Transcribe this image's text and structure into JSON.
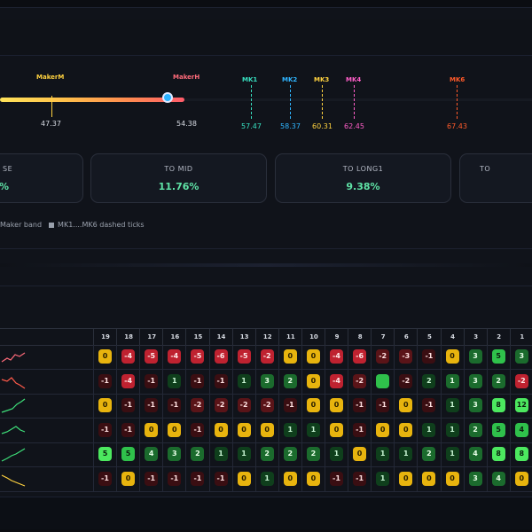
{
  "markers": {
    "maker_m": {
      "label": "MakerM",
      "value": "47.37",
      "color": "#ffd23f"
    },
    "maker_h": {
      "label": "MakerH",
      "value": "54.38",
      "color": "#ff6b7a"
    },
    "mk1": {
      "label": "MK1",
      "value": "57.47",
      "color": "#37e0c0"
    },
    "mk2": {
      "label": "MK2",
      "value": "58.37",
      "color": "#2fb5ff"
    },
    "mk3": {
      "label": "MK3",
      "value": "60.31",
      "color": "#ffd23f"
    },
    "mk4": {
      "label": "MK4",
      "value": "62.45",
      "color": "#ff5ec8"
    },
    "mk6": {
      "label": "MK6",
      "value": "67.43",
      "color": "#ff5a2a"
    }
  },
  "cards": [
    {
      "title": "SE",
      "value": "%"
    },
    {
      "title": "TO MID",
      "value": "11.76%"
    },
    {
      "title": "TO LONG1",
      "value": "9.38%"
    },
    {
      "title": "TO",
      "value": ""
    }
  ],
  "legend": {
    "item1": "Maker band",
    "item2": "MK1....MK6 dashed ticks"
  },
  "table": {
    "headers": [
      "19",
      "18",
      "17",
      "16",
      "15",
      "14",
      "13",
      "12",
      "11",
      "10",
      "9",
      "8",
      "7",
      "6",
      "5",
      "4",
      "3",
      "2",
      "1",
      "0"
    ],
    "rows": [
      {
        "cells": [
          [
            "0",
            "zero"
          ],
          [
            "-4",
            "negd"
          ],
          [
            "-5",
            "negd"
          ],
          [
            "-4",
            "negd"
          ],
          [
            "-5",
            "negd"
          ],
          [
            "-6",
            "negd"
          ],
          [
            "-5",
            "negd"
          ],
          [
            "-2",
            "negd"
          ],
          [
            "0",
            "zero"
          ],
          [
            "0",
            "zero"
          ],
          [
            "-4",
            "negd"
          ],
          [
            "-6",
            "negd"
          ],
          [
            "-2",
            "neg"
          ],
          [
            "-3",
            "neg"
          ],
          [
            "-1",
            "negl"
          ],
          [
            "0",
            "zero"
          ],
          [
            "3",
            "pos"
          ],
          [
            "5",
            "posb"
          ],
          [
            "3",
            "pos"
          ],
          [
            "2",
            "posb"
          ]
        ]
      },
      {
        "cells": [
          [
            "-1",
            "negl"
          ],
          [
            "-4",
            "negd"
          ],
          [
            "-1",
            "negl"
          ],
          [
            "1",
            "posd"
          ],
          [
            "-1",
            "negl"
          ],
          [
            "-1",
            "negl"
          ],
          [
            "1",
            "posd"
          ],
          [
            "3",
            "pos"
          ],
          [
            "2",
            "pos"
          ],
          [
            "0",
            "zero"
          ],
          [
            "-4",
            "negd"
          ],
          [
            "-2",
            "neg"
          ],
          [
            "",
            "posb"
          ],
          [
            "-2",
            "negl"
          ],
          [
            "2",
            "posd"
          ],
          [
            "1",
            "pos"
          ],
          [
            "3",
            "pos"
          ],
          [
            "2",
            "pos"
          ],
          [
            "-2",
            "negd"
          ],
          [
            "-2",
            "negd"
          ]
        ]
      },
      {
        "cells": [
          [
            "0",
            "zero"
          ],
          [
            "-1",
            "negl"
          ],
          [
            "-1",
            "negl"
          ],
          [
            "-1",
            "negl"
          ],
          [
            "-2",
            "neg"
          ],
          [
            "-2",
            "neg"
          ],
          [
            "-2",
            "neg"
          ],
          [
            "-2",
            "neg"
          ],
          [
            "-1",
            "negl"
          ],
          [
            "0",
            "zero"
          ],
          [
            "0",
            "zero"
          ],
          [
            "-1",
            "negl"
          ],
          [
            "-1",
            "negl"
          ],
          [
            "0",
            "zero"
          ],
          [
            "-1",
            "negl"
          ],
          [
            "1",
            "posd"
          ],
          [
            "3",
            "pos"
          ],
          [
            "8",
            "posbb"
          ],
          [
            "12",
            "posbb"
          ],
          [
            "14",
            "posbb"
          ]
        ]
      },
      {
        "cells": [
          [
            "-1",
            "negl"
          ],
          [
            "-1",
            "negl"
          ],
          [
            "0",
            "zero"
          ],
          [
            "0",
            "zero"
          ],
          [
            "-1",
            "negl"
          ],
          [
            "0",
            "zero"
          ],
          [
            "0",
            "zero"
          ],
          [
            "0",
            "zero"
          ],
          [
            "1",
            "posd"
          ],
          [
            "1",
            "posd"
          ],
          [
            "0",
            "zero"
          ],
          [
            "-1",
            "negl"
          ],
          [
            "0",
            "zero"
          ],
          [
            "0",
            "zero"
          ],
          [
            "1",
            "posd"
          ],
          [
            "1",
            "posd"
          ],
          [
            "2",
            "pos"
          ],
          [
            "5",
            "posb"
          ],
          [
            "4",
            "posb"
          ],
          [
            "3",
            "posb"
          ]
        ]
      },
      {
        "cells": [
          [
            "5",
            "posbb"
          ],
          [
            "5",
            "posb"
          ],
          [
            "4",
            "pos"
          ],
          [
            "3",
            "pos"
          ],
          [
            "2",
            "pos"
          ],
          [
            "1",
            "posd"
          ],
          [
            "1",
            "posd"
          ],
          [
            "2",
            "pos"
          ],
          [
            "2",
            "pos"
          ],
          [
            "2",
            "pos"
          ],
          [
            "1",
            "posd"
          ],
          [
            "0",
            "zero"
          ],
          [
            "1",
            "posd"
          ],
          [
            "1",
            "posd"
          ],
          [
            "2",
            "pos"
          ],
          [
            "1",
            "posd"
          ],
          [
            "4",
            "pos"
          ],
          [
            "8",
            "posbb"
          ],
          [
            "8",
            "posbb"
          ],
          [
            "9",
            "posbb"
          ]
        ]
      },
      {
        "cells": [
          [
            "-1",
            "negl"
          ],
          [
            "0",
            "zero"
          ],
          [
            "-1",
            "negl"
          ],
          [
            "-1",
            "negl"
          ],
          [
            "-1",
            "negl"
          ],
          [
            "-1",
            "negl"
          ],
          [
            "0",
            "zero"
          ],
          [
            "1",
            "posd"
          ],
          [
            "0",
            "zero"
          ],
          [
            "0",
            "zero"
          ],
          [
            "-1",
            "negl"
          ],
          [
            "-1",
            "negl"
          ],
          [
            "1",
            "posd"
          ],
          [
            "0",
            "zero"
          ],
          [
            "0",
            "zero"
          ],
          [
            "0",
            "zero"
          ],
          [
            "3",
            "pos"
          ],
          [
            "4",
            "pos"
          ],
          [
            "0",
            "zero"
          ],
          [
            "2",
            "posb"
          ]
        ]
      }
    ]
  },
  "colors": {
    "positive": "#5fe3a6",
    "knob": "#2db3ff"
  }
}
